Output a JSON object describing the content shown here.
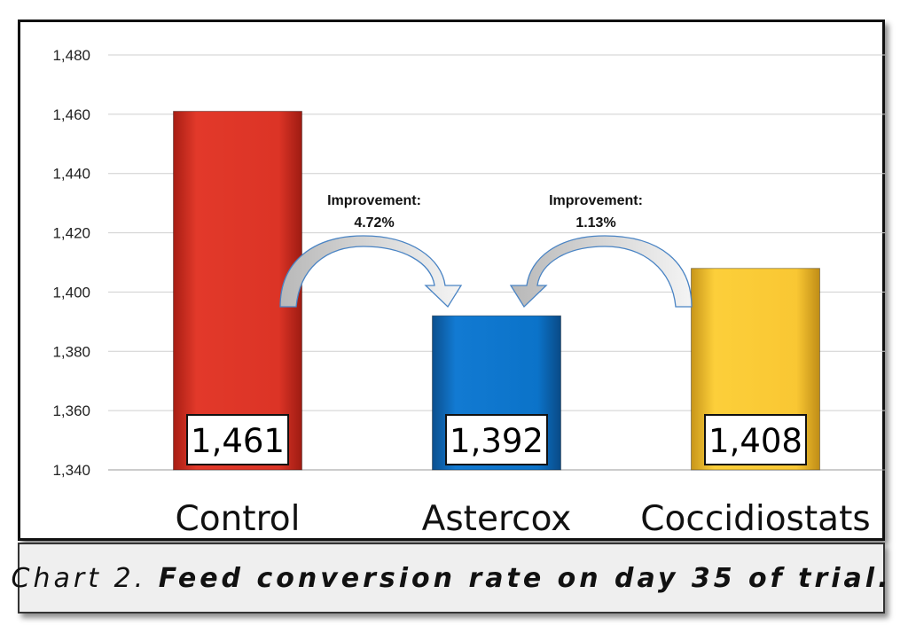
{
  "chart_data": {
    "type": "bar",
    "categories": [
      "Control",
      "Astercox",
      "Coccidiostats"
    ],
    "values": [
      1461,
      1392,
      1408
    ],
    "data_labels": [
      "1,461",
      "1,392",
      "1,408"
    ],
    "ylim": [
      1340,
      1480
    ],
    "yticks": [
      1340,
      1360,
      1380,
      1400,
      1420,
      1440,
      1460,
      1480
    ],
    "ytick_labels": [
      "1,340",
      "1,360",
      "1,380",
      "1,400",
      "1,420",
      "1,440",
      "1,460",
      "1,480"
    ],
    "grid": true,
    "bar_colors": [
      "#d93224",
      "#0a72c6",
      "#f7c530"
    ],
    "annotations": [
      {
        "line1": "Improvement:",
        "line2": "4.72%",
        "from": "Control",
        "to": "Astercox"
      },
      {
        "line1": "Improvement:",
        "line2": "1.13%",
        "from": "Coccidiostats",
        "to": "Astercox"
      }
    ]
  },
  "caption": {
    "prefix": "Chart 2.",
    "text": "Feed conversion rate on day 35 of trial."
  }
}
